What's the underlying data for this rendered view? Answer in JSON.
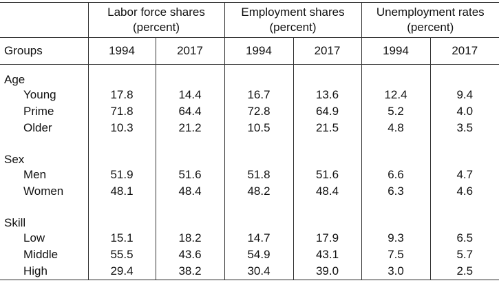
{
  "header": {
    "groups_label": "Groups",
    "column_groups": [
      {
        "line1": "Labor force shares",
        "line2": "(percent)"
      },
      {
        "line1": "Employment shares",
        "line2": "(percent)"
      },
      {
        "line1": "Unemployment rates",
        "line2": "(percent)"
      }
    ],
    "years": [
      "1994",
      "2017",
      "1994",
      "2017",
      "1994",
      "2017"
    ]
  },
  "groups": [
    {
      "name": "Age",
      "rows": [
        {
          "label": "Young",
          "values": [
            "17.8",
            "14.4",
            "16.7",
            "13.6",
            "12.4",
            "9.4"
          ]
        },
        {
          "label": "Prime",
          "values": [
            "71.8",
            "64.4",
            "72.8",
            "64.9",
            "5.2",
            "4.0"
          ]
        },
        {
          "label": "Older",
          "values": [
            "10.3",
            "21.2",
            "10.5",
            "21.5",
            "4.8",
            "3.5"
          ]
        }
      ]
    },
    {
      "name": "Sex",
      "rows": [
        {
          "label": "Men",
          "values": [
            "51.9",
            "51.6",
            "51.8",
            "51.6",
            "6.6",
            "4.7"
          ]
        },
        {
          "label": "Women",
          "values": [
            "48.1",
            "48.4",
            "48.2",
            "48.4",
            "6.3",
            "4.6"
          ]
        }
      ]
    },
    {
      "name": "Skill",
      "rows": [
        {
          "label": "Low",
          "values": [
            "15.1",
            "18.2",
            "14.7",
            "17.9",
            "9.3",
            "6.5"
          ]
        },
        {
          "label": "Middle",
          "values": [
            "55.5",
            "43.6",
            "54.9",
            "43.1",
            "7.5",
            "5.7"
          ]
        },
        {
          "label": "High",
          "values": [
            "29.4",
            "38.2",
            "30.4",
            "39.0",
            "3.0",
            "2.5"
          ]
        }
      ]
    }
  ]
}
